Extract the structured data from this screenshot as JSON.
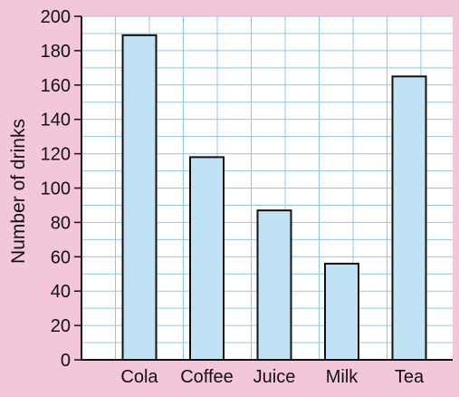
{
  "chart_data": {
    "type": "bar",
    "title": "",
    "xlabel": "",
    "ylabel": "Number of drinks",
    "categories": [
      "Cola",
      "Coffee",
      "Juice",
      "Milk",
      "Tea"
    ],
    "values": [
      189,
      118,
      87,
      56,
      165
    ],
    "ylim": [
      0,
      200
    ],
    "yticks": [
      0,
      20,
      40,
      60,
      80,
      100,
      120,
      140,
      160,
      180,
      200
    ],
    "grid": true,
    "legend": "none",
    "colors": {
      "background": "#f4c6dc",
      "plot_background": "#ffffff",
      "grid": "#8fc7e8",
      "bar_fill": "#bfe2f5",
      "bar_stroke": "#111111",
      "axis": "#111111"
    }
  }
}
